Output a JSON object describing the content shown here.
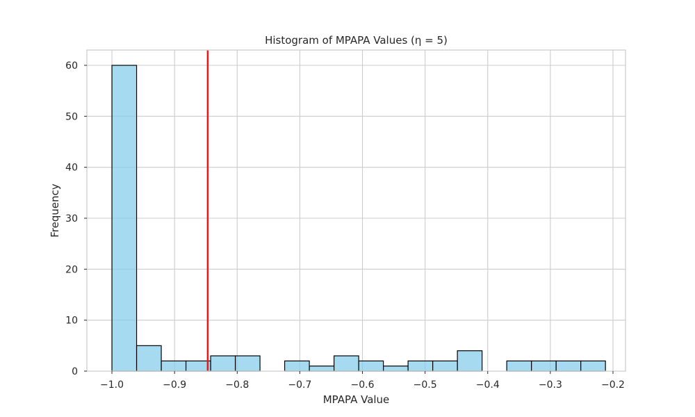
{
  "chart_data": {
    "type": "histogram",
    "title": "Histogram of MPAPA Values (η = 5)",
    "xlabel": "MPAPA Value",
    "ylabel": "Frequency",
    "xlim": [
      -1.04,
      -0.18
    ],
    "ylim": [
      0,
      63
    ],
    "x_ticks": [
      -1.0,
      -0.9,
      -0.8,
      -0.7,
      -0.6,
      -0.5,
      -0.4,
      -0.3,
      -0.2
    ],
    "x_tick_labels": [
      "−1.0",
      "−0.9",
      "−0.8",
      "−0.7",
      "−0.6",
      "−0.5",
      "−0.4",
      "−0.3",
      "−0.2"
    ],
    "y_ticks": [
      0,
      10,
      20,
      30,
      40,
      50,
      60
    ],
    "y_tick_labels": [
      "0",
      "10",
      "20",
      "30",
      "40",
      "50",
      "60"
    ],
    "grid": true,
    "bin_edges": [
      -1.0,
      -0.9606,
      -0.9212,
      -0.8818,
      -0.8424,
      -0.803,
      -0.7636,
      -0.7242,
      -0.6848,
      -0.6454,
      -0.606,
      -0.5666,
      -0.5272,
      -0.4878,
      -0.4484,
      -0.409,
      -0.3696,
      -0.3302,
      -0.2908,
      -0.2514,
      -0.212
    ],
    "counts": [
      60,
      5,
      2,
      2,
      3,
      3,
      0,
      2,
      1,
      3,
      2,
      1,
      2,
      2,
      4,
      0,
      2,
      2,
      2,
      2
    ],
    "reference_line": {
      "x": -0.847
    },
    "colors": {
      "bar_fill": "#87CEEB",
      "bar_edge": "#000000",
      "reference_line": "#e8191b",
      "grid": "#cccccc"
    }
  }
}
